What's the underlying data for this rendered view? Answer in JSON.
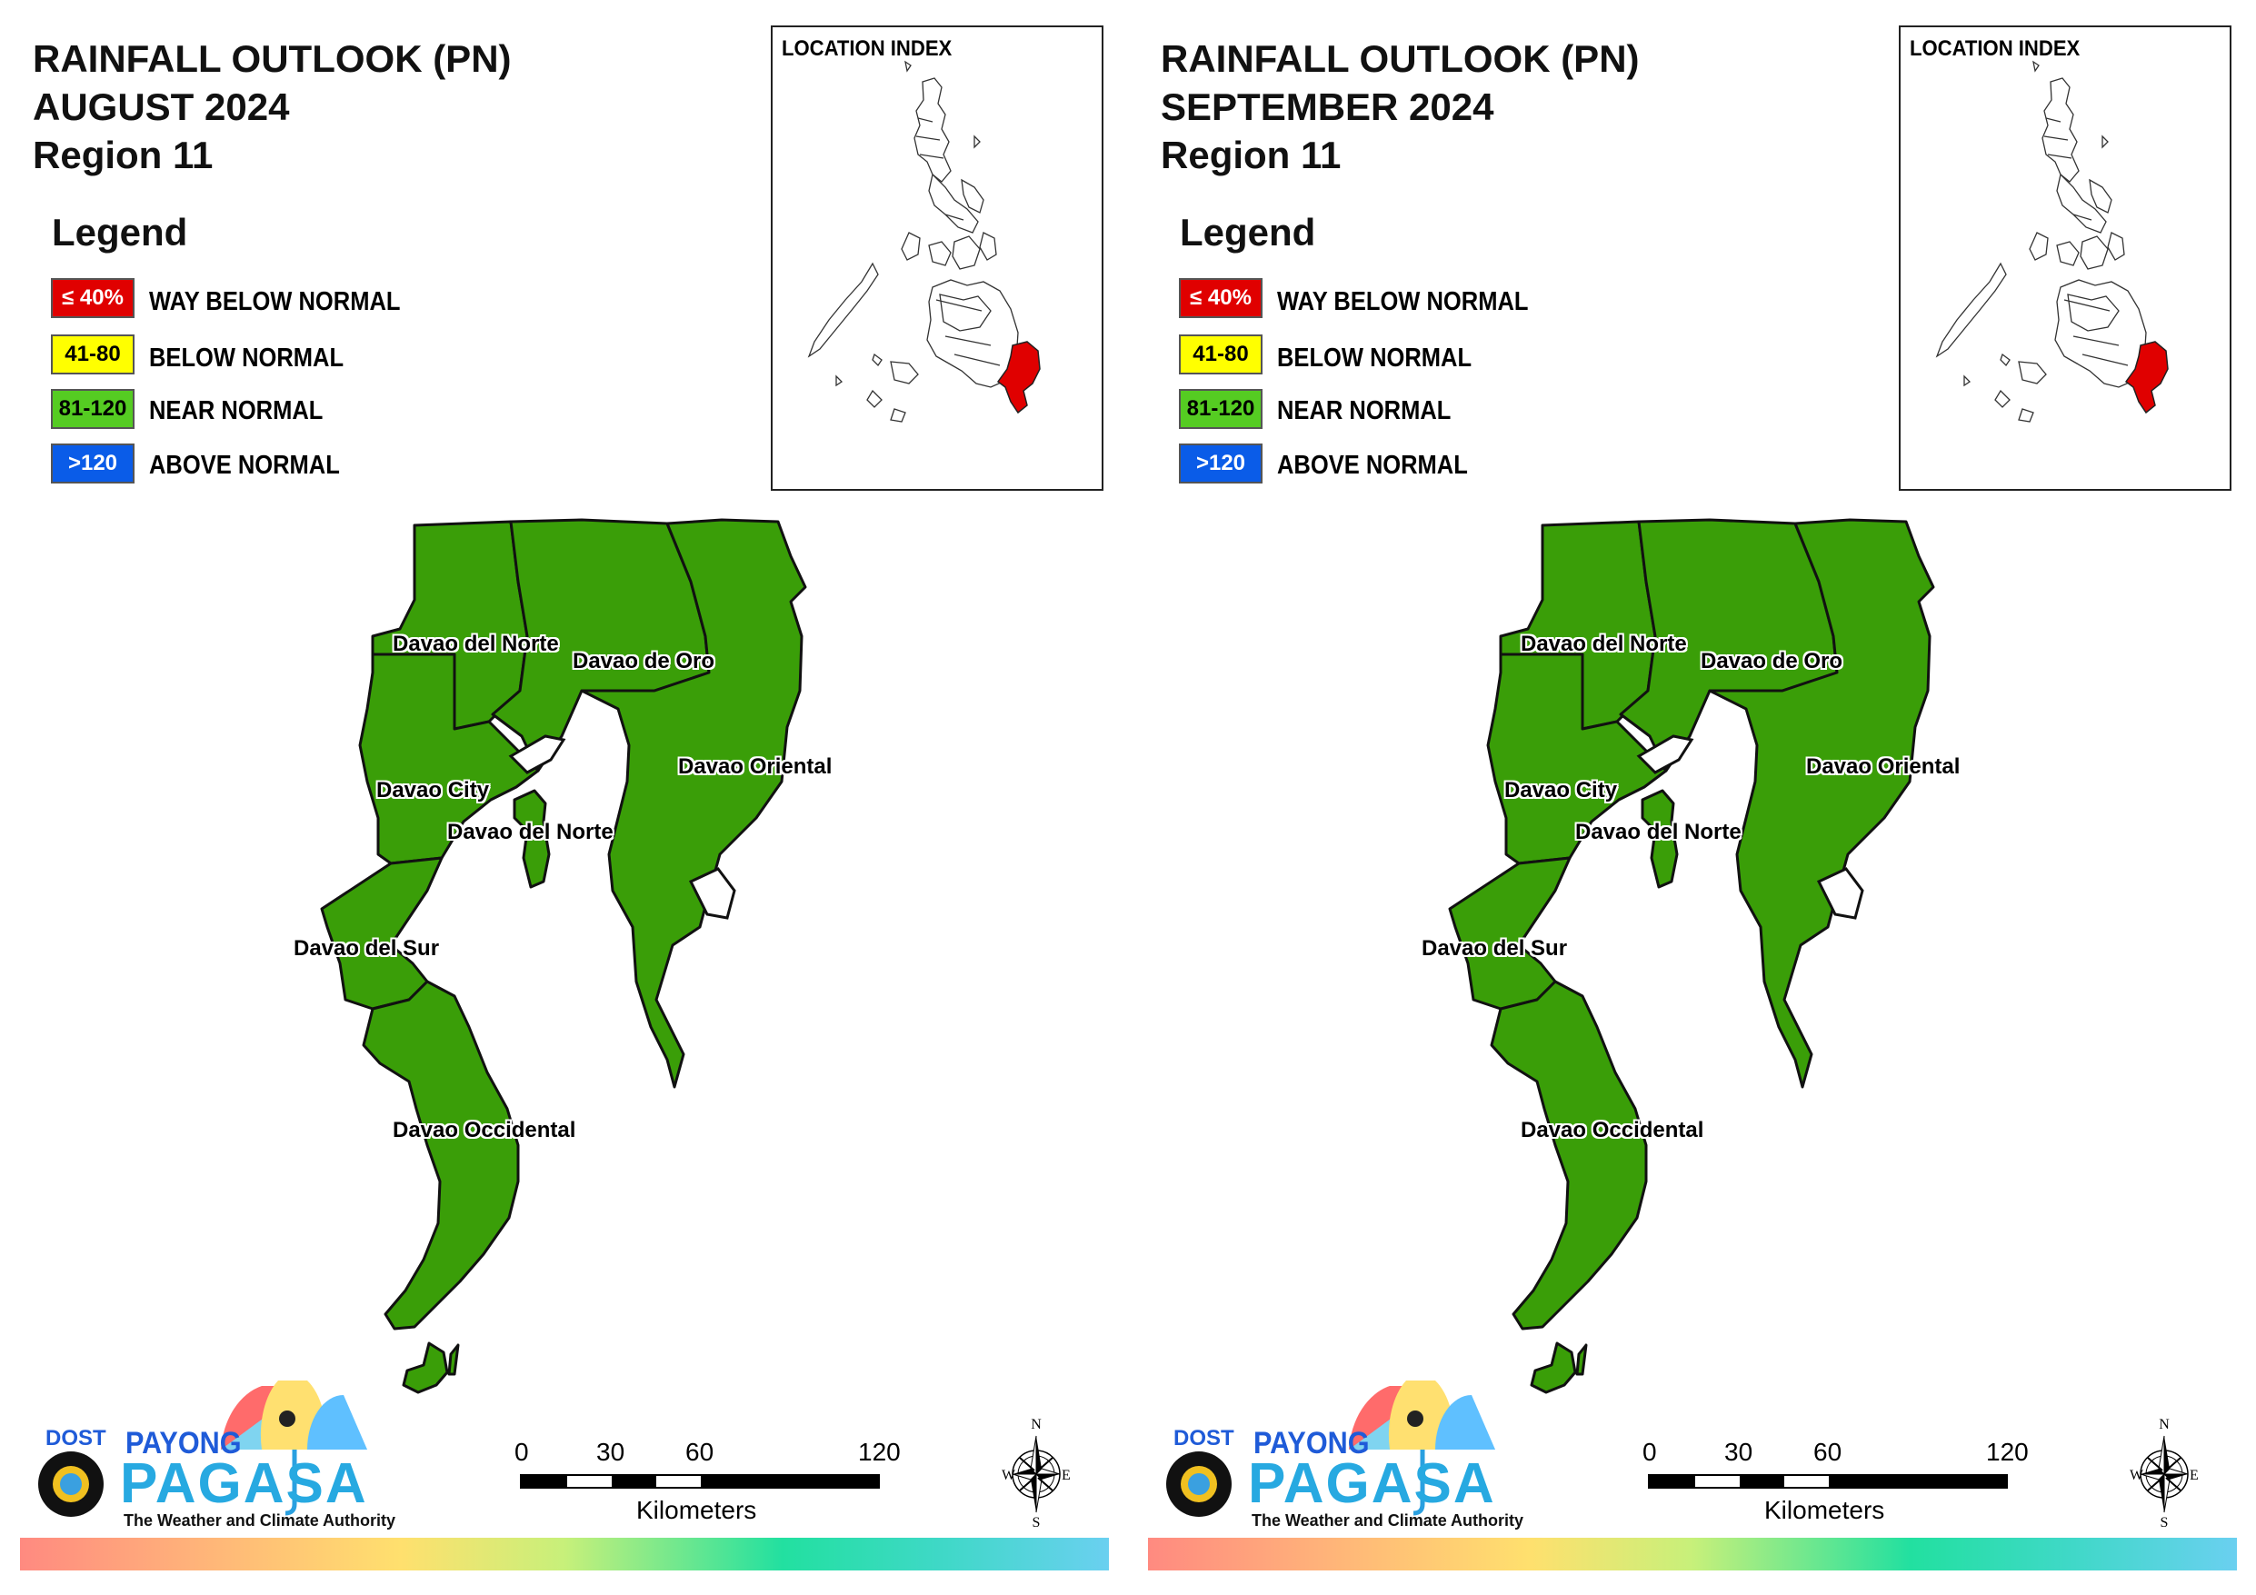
{
  "panels": [
    {
      "title_line1": "RAINFALL OUTLOOK (PN)",
      "title_line2": "AUGUST 2024",
      "title_line3": "Region 11"
    },
    {
      "title_line1": "RAINFALL OUTLOOK (PN)",
      "title_line2": "SEPTEMBER 2024",
      "title_line3": "Region 11"
    }
  ],
  "legend": {
    "title": "Legend",
    "items": [
      {
        "swatch": "≤ 40%",
        "label": "WAY BELOW NORMAL",
        "color": "#e00000"
      },
      {
        "swatch": "41-80",
        "label": "BELOW NORMAL",
        "color": "#ffff00"
      },
      {
        "swatch": "81-120",
        "label": "NEAR NORMAL",
        "color": "#55cc22"
      },
      {
        "swatch": ">120",
        "label": "ABOVE NORMAL",
        "color": "#0a5ce8"
      }
    ]
  },
  "inset": {
    "title": "LOCATION INDEX",
    "highlight_color": "#e00000"
  },
  "map": {
    "fill_color": "#3a9e08",
    "category": "NEAR NORMAL",
    "labels": {
      "norte_top": "Davao del Norte",
      "de_oro": "Davao de Oro",
      "oriental": "Davao Oriental",
      "city": "Davao City",
      "norte_island": "Davao del Norte",
      "sur": "Davao del Sur",
      "occidental": "Davao Occidental"
    }
  },
  "scale": {
    "ticks": [
      "0",
      "30",
      "60",
      "120"
    ],
    "unit": "Kilometers"
  },
  "compass": {
    "n": "N",
    "s": "S",
    "e": "E",
    "w": "W"
  },
  "logo": {
    "dost": "DOST",
    "payong": "PAYONG",
    "pagasa": "PAGASA",
    "tagline": "The Weather and Climate Authority"
  }
}
